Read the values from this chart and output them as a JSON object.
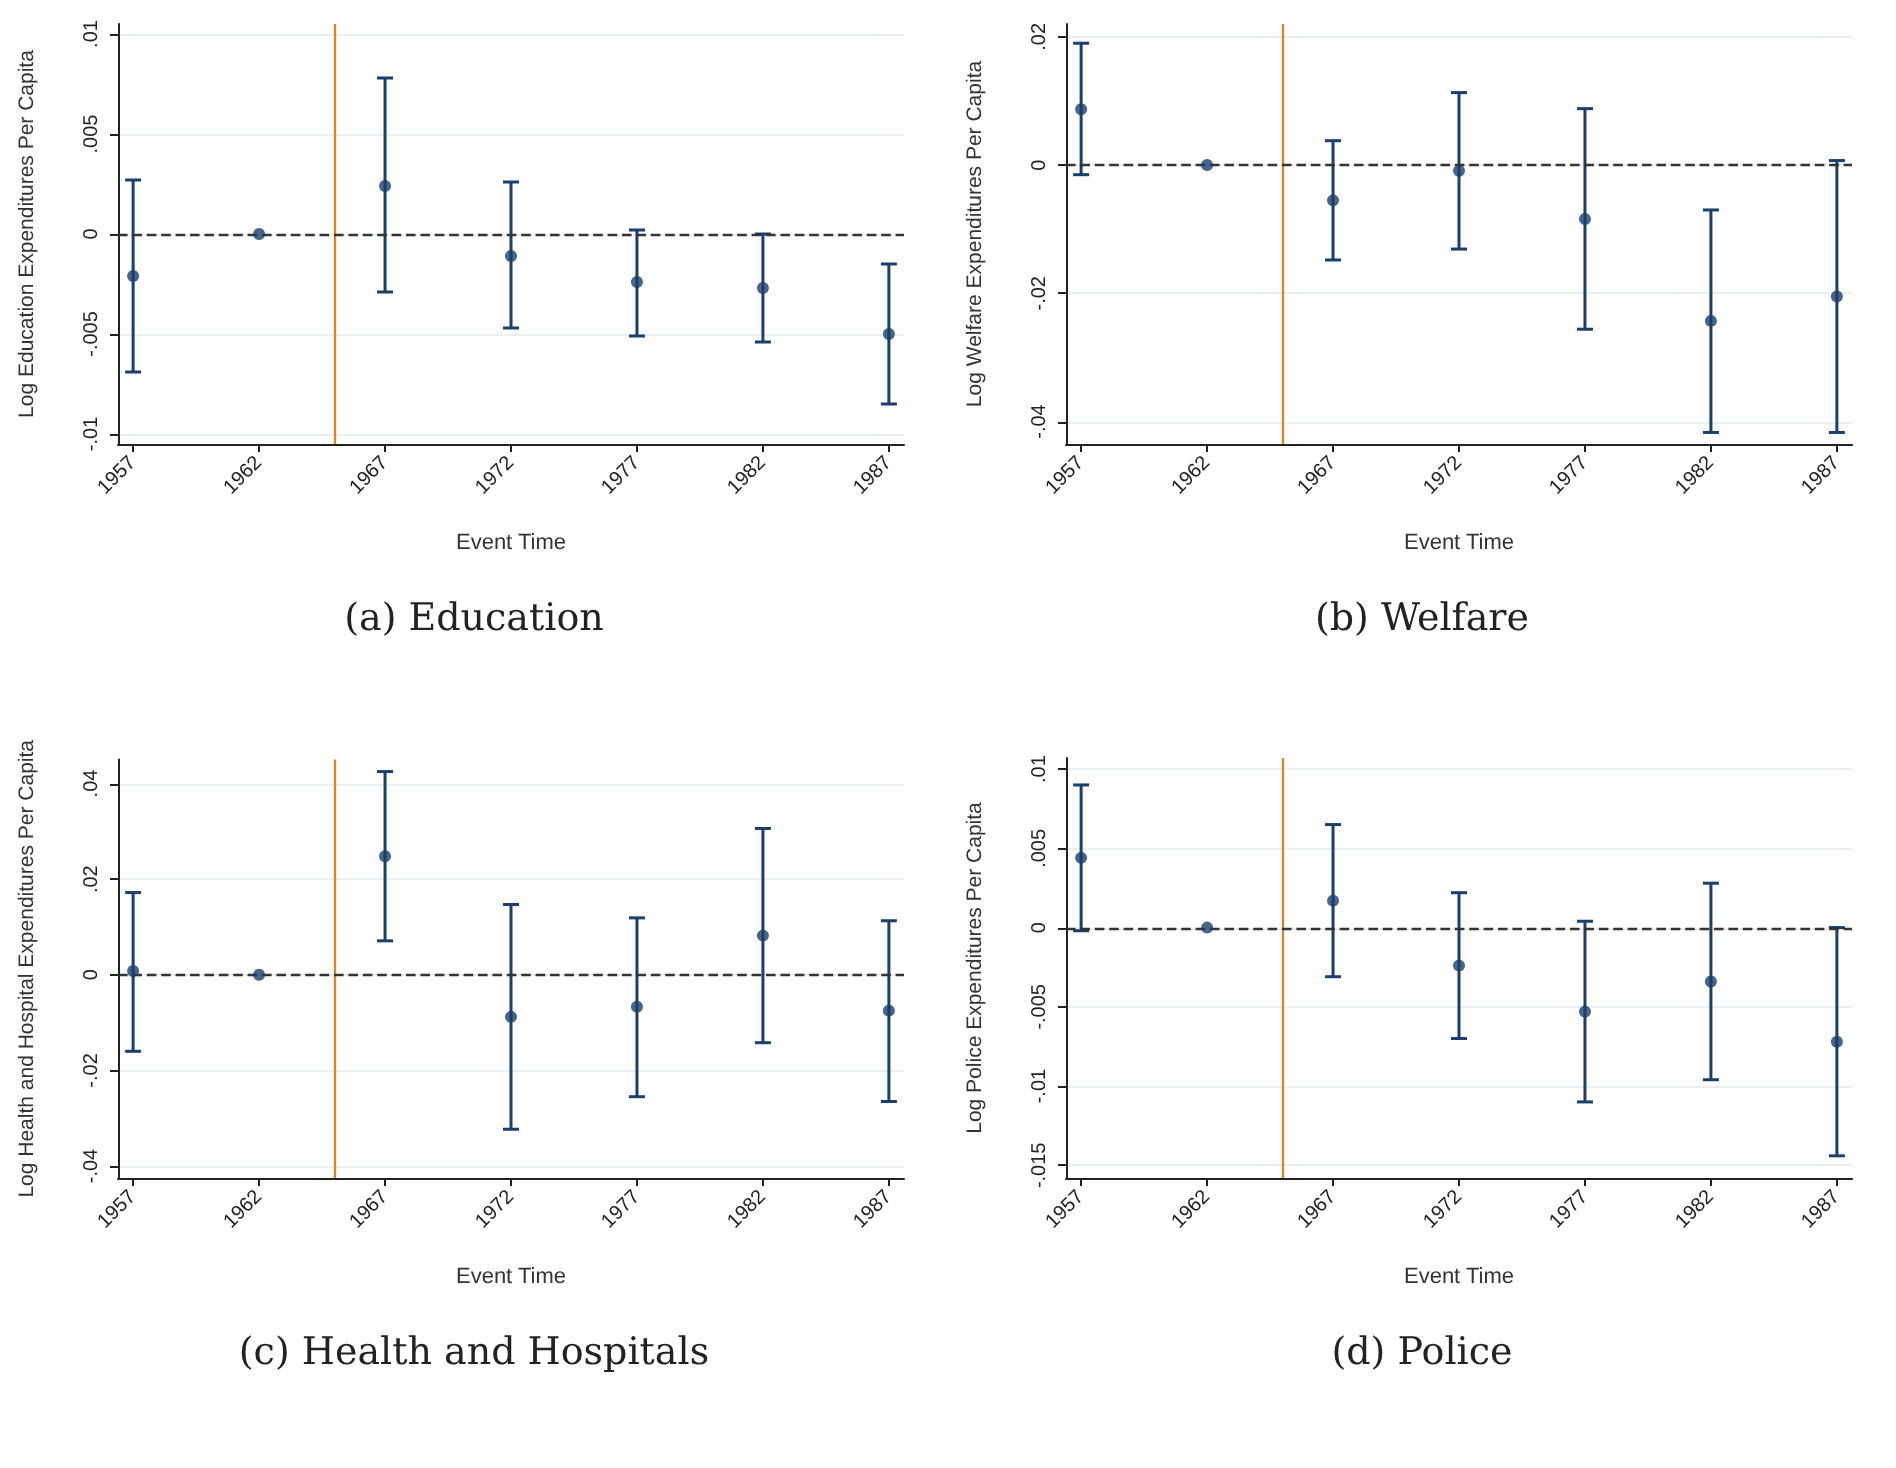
{
  "chart_data": [
    {
      "type": "scatter",
      "title": "(a) Education",
      "xlabel": "Event Time",
      "ylabel": "Log Education Expenditures Per Capita",
      "color": "#1a3f6b",
      "marker": "circle",
      "grid": "y",
      "x": [
        1957,
        1962,
        1967,
        1972,
        1977,
        1982,
        1987
      ],
      "values": [
        -0.0021,
        0,
        0.0024,
        -0.0011,
        -0.0024,
        -0.0027,
        -0.005
      ],
      "errors": [
        [
          -0.0069,
          0.0027
        ],
        null,
        [
          -0.0029,
          0.0078
        ],
        [
          -0.0047,
          0.0026
        ],
        [
          -0.0051,
          0.0002
        ],
        [
          -0.0054,
          0.0
        ],
        [
          -0.0085,
          -0.0015
        ]
      ],
      "xlim": [
        1956.4,
        1987.6
      ],
      "xticks": [
        1957,
        1962,
        1967,
        1972,
        1977,
        1982,
        1987
      ],
      "ylim": [
        -0.0105,
        0.0105
      ],
      "yticks": [
        {
          "value": -0.01,
          "label": "-.01"
        },
        {
          "value": -0.005,
          "label": "-.005"
        },
        {
          "value": 0,
          "label": "0"
        },
        {
          "value": 0.005,
          "label": ".005"
        },
        {
          "value": 0.01,
          "label": ".01"
        }
      ],
      "ref_lines": [
        {
          "axis": "x",
          "value": 1965,
          "color": "#d4882a",
          "line_style": "solid"
        },
        {
          "axis": "y",
          "value": 0,
          "color": "#333333",
          "line_style": "dashed"
        }
      ]
    },
    {
      "type": "scatter",
      "title": "(b) Welfare",
      "xlabel": "Event Time",
      "ylabel": "Log Welfare Expenditures Per Capita",
      "color": "#1a3f6b",
      "marker": "circle",
      "grid": "y",
      "x": [
        1957,
        1962,
        1967,
        1972,
        1977,
        1982,
        1987
      ],
      "values": [
        0.0087,
        0,
        -0.0055,
        -0.0009,
        -0.0084,
        -0.0243,
        -0.0205
      ],
      "errors": [
        [
          -0.0015,
          0.019
        ],
        null,
        [
          -0.0148,
          0.0038
        ],
        [
          -0.0131,
          0.0113
        ],
        [
          -0.0256,
          0.0088
        ],
        [
          -0.0417,
          -0.007
        ],
        [
          -0.0417,
          0.0007
        ]
      ],
      "xlim": [
        1956.4,
        1987.6
      ],
      "xticks": [
        1957,
        1962,
        1967,
        1972,
        1977,
        1982,
        1987
      ],
      "ylim": [
        -0.0435,
        0.022
      ],
      "yticks": [
        {
          "value": -0.04,
          "label": "-.04"
        },
        {
          "value": -0.02,
          "label": "-.02"
        },
        {
          "value": 0,
          "label": "0"
        },
        {
          "value": 0.02,
          "label": ".02"
        }
      ],
      "ref_lines": [
        {
          "axis": "x",
          "value": 1965,
          "color": "#d4882a",
          "line_style": "solid"
        },
        {
          "axis": "y",
          "value": 0,
          "color": "#333333",
          "line_style": "dashed"
        }
      ]
    },
    {
      "type": "scatter",
      "title": "(c) Health and Hospitals",
      "xlabel": "Event Time",
      "ylabel": "Log Health and Hospital Expenditures Per Capita",
      "color": "#1a3f6b",
      "marker": "circle",
      "grid": "y",
      "x": [
        1957,
        1962,
        1967,
        1972,
        1977,
        1982,
        1987
      ],
      "values": [
        0.0008,
        0,
        0.0248,
        -0.0088,
        -0.0067,
        0.0082,
        -0.0075
      ],
      "errors": [
        [
          -0.016,
          0.0172
        ],
        null,
        [
          0.0071,
          0.0425
        ],
        [
          -0.0323,
          0.0147
        ],
        [
          -0.0255,
          0.0119
        ],
        [
          -0.0142,
          0.0306
        ],
        [
          -0.0265,
          0.0113
        ]
      ],
      "xlim": [
        1956.4,
        1987.6
      ],
      "xticks": [
        1957,
        1962,
        1967,
        1972,
        1977,
        1982,
        1987
      ],
      "ylim": [
        -0.0425,
        0.045
      ],
      "yticks": [
        {
          "value": -0.04,
          "label": "-.04"
        },
        {
          "value": -0.02,
          "label": "-.02"
        },
        {
          "value": 0,
          "label": "0"
        },
        {
          "value": 0.02,
          "label": ".02"
        },
        {
          "value": 0.04,
          "label": ".04"
        }
      ],
      "ref_lines": [
        {
          "axis": "x",
          "value": 1965,
          "color": "#d4882a",
          "line_style": "solid"
        },
        {
          "axis": "y",
          "value": 0,
          "color": "#333333",
          "line_style": "dashed"
        }
      ]
    },
    {
      "type": "scatter",
      "title": "(d) Police",
      "xlabel": "Event Time",
      "ylabel": "Log Police Expenditures Per Capita",
      "color": "#1a3f6b",
      "marker": "circle",
      "grid": "y",
      "x": [
        1957,
        1962,
        1967,
        1972,
        1977,
        1982,
        1987
      ],
      "values": [
        0.0044,
        0,
        0.0017,
        -0.0024,
        -0.0053,
        -0.0034,
        -0.0072
      ],
      "errors": [
        [
          -0.0002,
          0.009
        ],
        null,
        [
          -0.0031,
          0.0065
        ],
        [
          -0.007,
          0.0022
        ],
        [
          -0.011,
          0.0004
        ],
        [
          -0.0096,
          0.0028
        ],
        [
          -0.0144,
          0.0
        ]
      ],
      "xlim": [
        1956.4,
        1987.6
      ],
      "xticks": [
        1957,
        1962,
        1967,
        1972,
        1977,
        1982,
        1987
      ],
      "ylim": [
        -0.0158,
        0.0107
      ],
      "yticks": [
        {
          "value": -0.015,
          "label": "-.015"
        },
        {
          "value": -0.01,
          "label": "-.01"
        },
        {
          "value": -0.005,
          "label": "-.005"
        },
        {
          "value": 0,
          "label": "0"
        },
        {
          "value": 0.005,
          "label": ".005"
        },
        {
          "value": 0.01,
          "label": ".01"
        }
      ],
      "ref_lines": [
        {
          "axis": "x",
          "value": 1965,
          "color": "#d4882a",
          "line_style": "solid"
        },
        {
          "axis": "y",
          "value": 0,
          "color": "#333333",
          "line_style": "dashed"
        }
      ]
    }
  ]
}
